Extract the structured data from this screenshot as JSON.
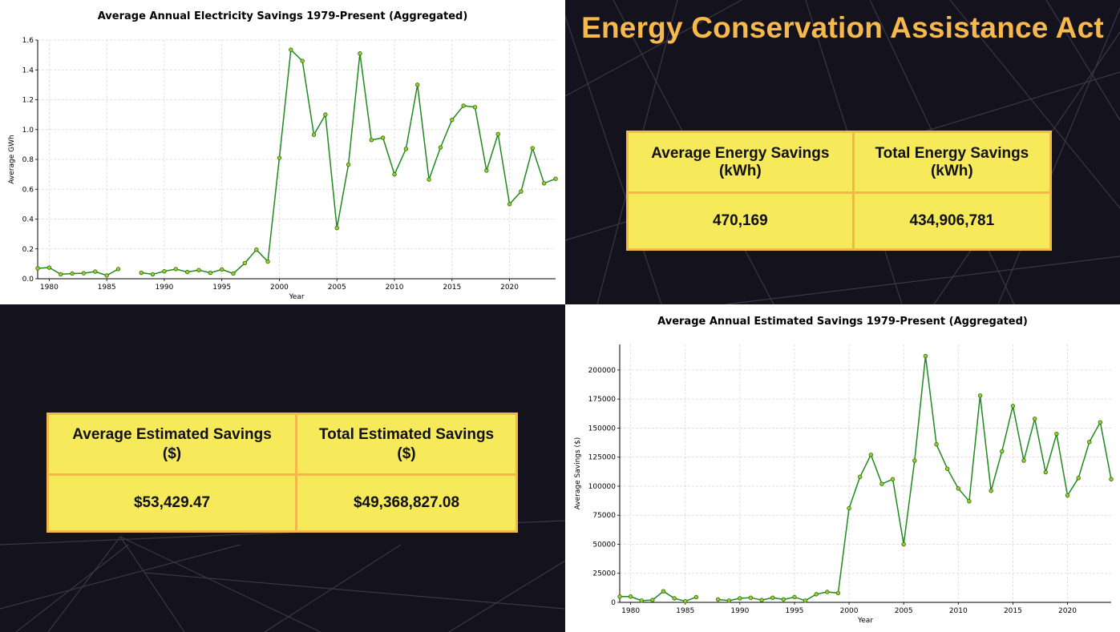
{
  "header": {
    "title": "Energy Conservation Assistance Act"
  },
  "energy_table": {
    "col1_header_line1": "Average Energy Savings",
    "col1_header_line2": "(kWh)",
    "col2_header_line1": "Total Energy Savings",
    "col2_header_line2": "(kWh)",
    "col1_value": "470,169",
    "col2_value": "434,906,781"
  },
  "dollar_table": {
    "col1_header_line1": "Average Estimated Savings",
    "col1_header_line2": "($)",
    "col2_header_line1": "Total Estimated Savings",
    "col2_header_line2": "($)",
    "col1_value": "$53,429.47",
    "col2_value": "$49,368,827.08"
  },
  "colors": {
    "line": "#1f8a1f",
    "marker": "#9acd32",
    "accent": "#f7b94c",
    "table_bg": "#f6ea5a",
    "panel_bg": "#14121d"
  },
  "chart_data": [
    {
      "type": "line",
      "title": "Average Annual Electricity Savings 1979-Present (Aggregated)",
      "xlabel": "Year",
      "ylabel": "Average GWh",
      "xlim": [
        1979,
        2024
      ],
      "ylim": [
        0,
        1.6
      ],
      "xticks": [
        1980,
        1985,
        1990,
        1995,
        2000,
        2005,
        2010,
        2015,
        2020
      ],
      "xtick_labels": [
        "1980",
        "1985",
        "1990",
        "1995",
        "2000",
        "2005",
        "2010",
        "2015",
        "2020"
      ],
      "yticks": [
        0,
        0.2,
        0.4,
        0.6,
        0.8,
        1.0,
        1.2,
        1.4,
        1.6
      ],
      "ytick_labels": [
        "0.0",
        "0.2",
        "0.4",
        "0.6",
        "0.8",
        "1.0",
        "1.2",
        "1.4",
        "1.6"
      ],
      "grid": true,
      "x": [
        1979,
        1980,
        1981,
        1982,
        1983,
        1984,
        1985,
        1986,
        1988,
        1989,
        1990,
        1991,
        1992,
        1993,
        1994,
        1995,
        1996,
        1997,
        1998,
        1999,
        2000,
        2001,
        2002,
        2003,
        2004,
        2005,
        2006,
        2007,
        2008,
        2009,
        2010,
        2011,
        2012,
        2013,
        2014,
        2015,
        2016,
        2017,
        2018,
        2019,
        2020,
        2021,
        2022,
        2023,
        2024
      ],
      "y": [
        0.07,
        0.075,
        0.03,
        0.035,
        0.037,
        0.048,
        0.022,
        0.065,
        0.04,
        0.03,
        0.05,
        0.065,
        0.045,
        0.058,
        0.04,
        0.062,
        0.035,
        0.105,
        0.195,
        0.115,
        0.81,
        1.535,
        1.46,
        0.965,
        1.1,
        0.34,
        0.765,
        1.51,
        0.93,
        0.945,
        0.7,
        0.87,
        1.3,
        0.665,
        0.88,
        1.065,
        1.16,
        1.15,
        0.725,
        0.97,
        0.5,
        0.585,
        0.875,
        0.64,
        0.67
      ]
    },
    {
      "type": "line",
      "title": "Average Annual Estimated Savings 1979-Present (Aggregated)",
      "xlabel": "Year",
      "ylabel": "Average Savings ($)",
      "xlim": [
        1979,
        2024
      ],
      "ylim": [
        0,
        222000
      ],
      "xticks": [
        1980,
        1985,
        1990,
        1995,
        2000,
        2005,
        2010,
        2015,
        2020
      ],
      "xtick_labels": [
        "1980",
        "1985",
        "1990",
        "1995",
        "2000",
        "2005",
        "2010",
        "2015",
        "2020"
      ],
      "yticks": [
        0,
        25000,
        50000,
        75000,
        100000,
        125000,
        150000,
        175000,
        200000
      ],
      "ytick_labels": [
        "0",
        "25000",
        "50000",
        "75000",
        "100000",
        "125000",
        "150000",
        "175000",
        "200000"
      ],
      "grid": true,
      "x": [
        1979,
        1980,
        1981,
        1982,
        1983,
        1984,
        1985,
        1986,
        1988,
        1989,
        1990,
        1991,
        1992,
        1993,
        1994,
        1995,
        1996,
        1997,
        1998,
        1999,
        2000,
        2001,
        2002,
        2003,
        2004,
        2005,
        2006,
        2007,
        2008,
        2009,
        2010,
        2011,
        2012,
        2013,
        2014,
        2015,
        2016,
        2017,
        2018,
        2019,
        2020,
        2021,
        2022,
        2023,
        2024
      ],
      "y": [
        5000,
        5000,
        1500,
        2000,
        9500,
        3500,
        1000,
        4500,
        2500,
        1500,
        3500,
        4000,
        2000,
        4000,
        2500,
        4500,
        1500,
        7000,
        9000,
        8000,
        81000,
        108000,
        127000,
        102000,
        106000,
        50000,
        122000,
        212000,
        136000,
        115000,
        98000,
        87000,
        178000,
        96000,
        130000,
        169000,
        122000,
        158000,
        112000,
        145000,
        92000,
        107000,
        138000,
        155000,
        106000
      ]
    }
  ]
}
